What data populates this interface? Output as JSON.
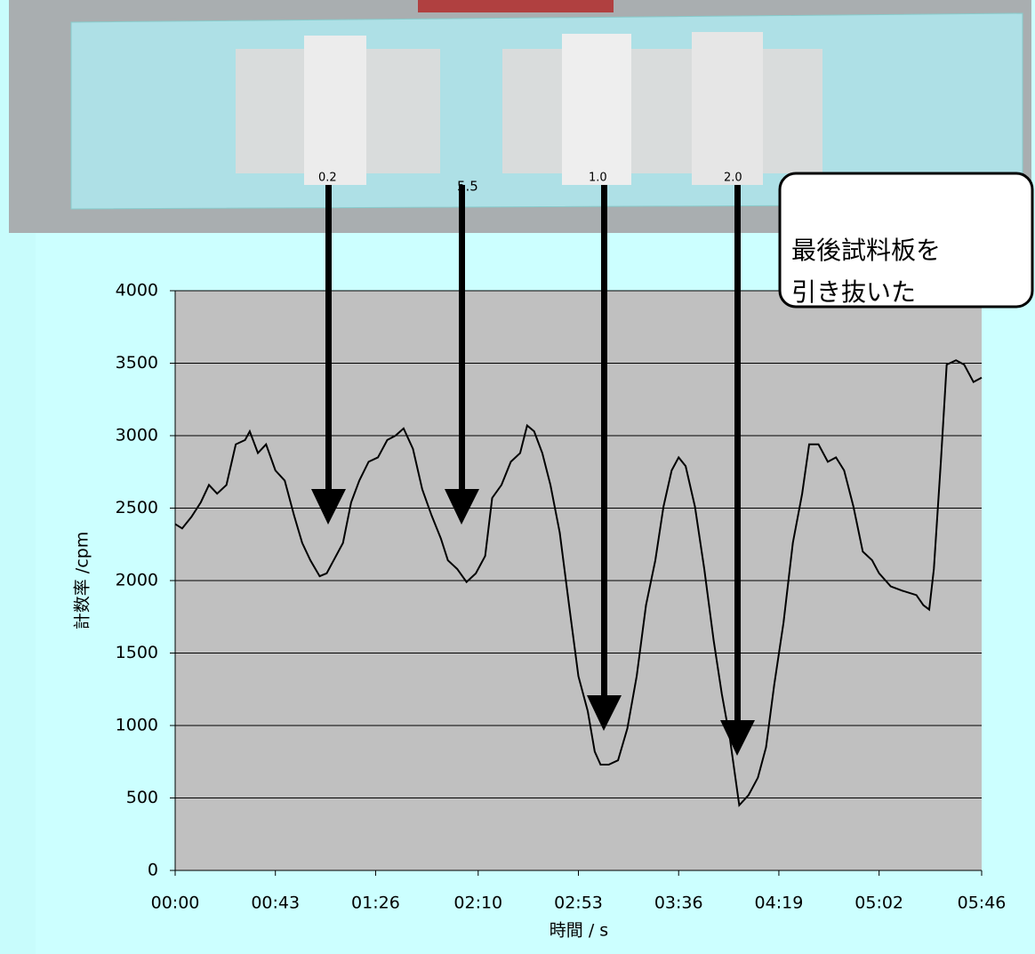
{
  "photo_labels": [
    "0.2",
    "5.5",
    "1.0",
    "2.0"
  ],
  "chart_data": {
    "type": "line",
    "x_label": "時間 / s",
    "y_label": "計数率 /cpm",
    "annotations": [
      "最後試料板を",
      "引き抜いた"
    ],
    "grid": true,
    "xlim": [
      0,
      346
    ],
    "xticks": [
      {
        "value": 0,
        "label": "00:00"
      },
      {
        "value": 43,
        "label": "00:43"
      },
      {
        "value": 86,
        "label": "01:26"
      },
      {
        "value": 130,
        "label": "02:10"
      },
      {
        "value": 173,
        "label": "02:53"
      },
      {
        "value": 216,
        "label": "03:36"
      },
      {
        "value": 259,
        "label": "04:19"
      },
      {
        "value": 302,
        "label": "05:02"
      },
      {
        "value": 346,
        "label": "05:46"
      }
    ],
    "ylim": [
      0,
      4000
    ],
    "yticks": [
      0,
      500,
      1000,
      1500,
      2000,
      2500,
      3000,
      3500,
      4000
    ],
    "x": [
      0,
      3,
      7,
      11,
      14.5,
      18,
      22,
      26,
      30,
      32,
      35.5,
      39,
      43,
      47,
      51,
      54.5,
      58,
      62,
      65,
      68,
      72,
      75.5,
      79,
      83,
      87,
      91,
      94.5,
      98,
      102,
      106,
      110,
      114,
      117,
      121,
      125,
      129,
      133,
      136,
      140,
      144,
      148,
      151,
      154,
      157.5,
      161,
      165,
      169,
      173,
      177,
      180,
      182.5,
      186,
      190,
      194,
      198,
      202,
      206,
      209.5,
      213,
      216,
      219,
      223,
      227,
      231,
      234.5,
      238,
      242,
      246,
      250,
      253.5,
      257,
      261,
      265,
      269,
      272,
      276,
      280,
      283.5,
      287,
      291,
      295,
      299,
      302,
      307,
      312,
      318,
      321,
      323.5,
      325.5,
      328.5,
      331,
      335,
      338.5,
      342.5,
      346
    ],
    "series": [
      {
        "name": "計数率",
        "color": "#000000",
        "values": [
          2390,
          2360,
          2440,
          2540,
          2660,
          2600,
          2660,
          2940,
          2970,
          3030,
          2880,
          2940,
          2760,
          2690,
          2450,
          2260,
          2140,
          2030,
          2050,
          2140,
          2260,
          2540,
          2690,
          2820,
          2850,
          2970,
          3000,
          3050,
          2910,
          2630,
          2450,
          2290,
          2140,
          2080,
          1990,
          2050,
          2170,
          2570,
          2660,
          2820,
          2880,
          3070,
          3030,
          2880,
          2660,
          2330,
          1830,
          1340,
          1100,
          820,
          730,
          730,
          760,
          980,
          1340,
          1830,
          2140,
          2510,
          2760,
          2850,
          2790,
          2510,
          2080,
          1590,
          1220,
          910,
          450,
          520,
          640,
          850,
          1280,
          1710,
          2260,
          2600,
          2940,
          2940,
          2820,
          2850,
          2760,
          2510,
          2200,
          2140,
          2050,
          1960,
          1930,
          1900,
          1830,
          1800,
          2080,
          2820,
          3490,
          3520,
          3490,
          3370,
          3400
        ]
      }
    ]
  }
}
